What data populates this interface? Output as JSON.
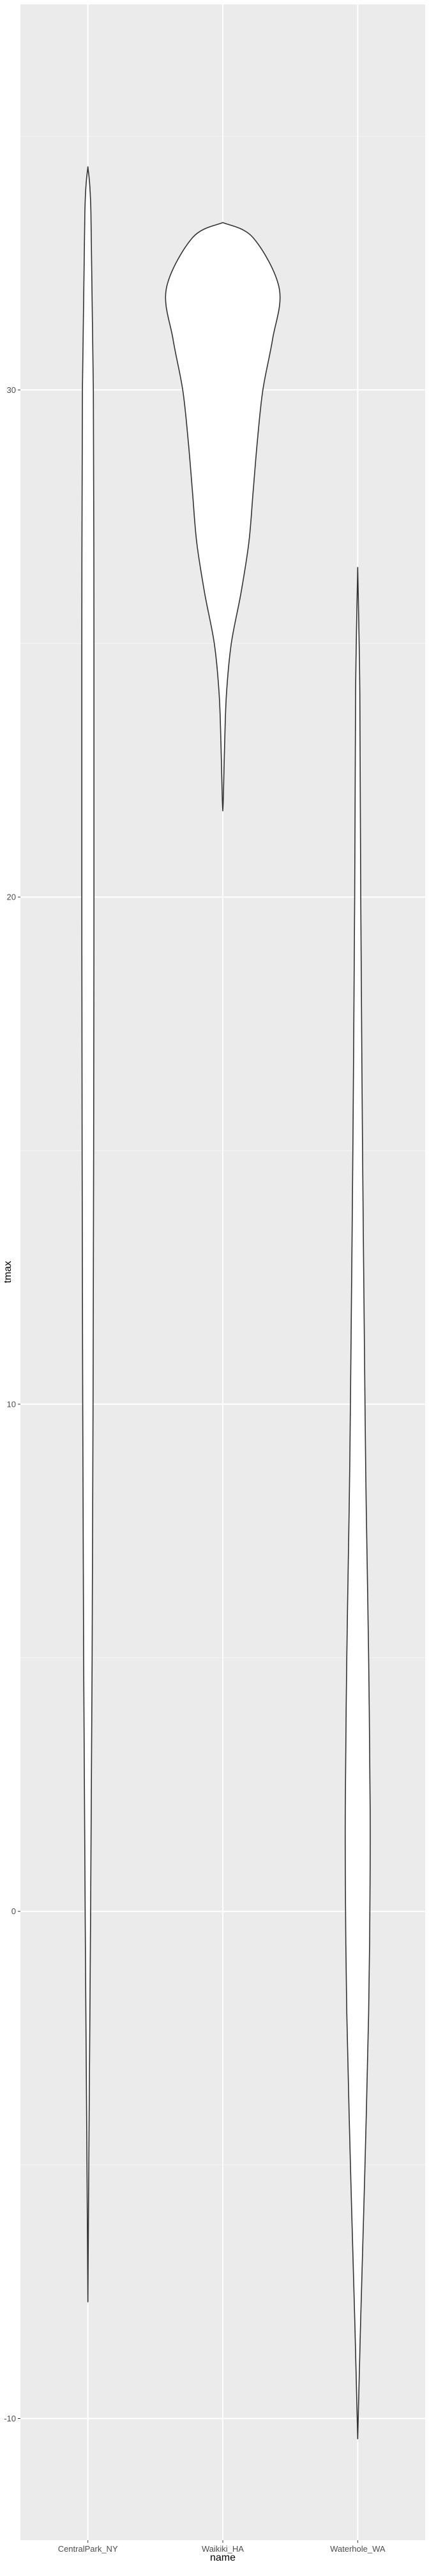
{
  "chart_data": {
    "type": "violin",
    "title": "",
    "xlabel": "name",
    "ylabel": "tmax",
    "categories": [
      "CentralPark_NY",
      "Waikiki_HA",
      "Waterhole_WA"
    ],
    "ylim": [
      -12.4,
      37.6
    ],
    "yticks": [
      -10,
      0,
      10,
      20,
      30
    ],
    "ytick_labels": [
      "-10",
      "0",
      "10",
      "20",
      "30"
    ],
    "grid": true,
    "legend": "none",
    "colors": {
      "panel": "#ebebeb",
      "grid": "#ffffff",
      "violin_fill": "#ffffff",
      "violin_stroke": "#333333"
    },
    "series": [
      {
        "name": "CentralPark_NY",
        "y": [
          -7.7,
          -5,
          0,
          5,
          10,
          15,
          20,
          25,
          30,
          33.5,
          34.4
        ],
        "width": [
          0.0,
          0.015,
          0.045,
          0.07,
          0.085,
          0.095,
          0.1,
          0.1,
          0.09,
          0.05,
          0.0
        ]
      },
      {
        "name": "Waikiki_HA",
        "y": [
          21.7,
          22.0,
          23.0,
          24.0,
          25.0,
          26.0,
          27.0,
          28.0,
          29.0,
          30.0,
          31.0,
          32.0,
          33.0,
          33.3
        ],
        "width": [
          0.0,
          0.01,
          0.03,
          0.06,
          0.14,
          0.3,
          0.43,
          0.5,
          0.57,
          0.66,
          0.82,
          0.93,
          0.5,
          0.0
        ]
      },
      {
        "name": "Waterhole_WA",
        "y": [
          -10.4,
          -8,
          -5,
          -2,
          0,
          2,
          5,
          8,
          10,
          15,
          20,
          24.0,
          26.5
        ],
        "width": [
          0.0,
          0.05,
          0.12,
          0.18,
          0.2,
          0.205,
          0.18,
          0.14,
          0.12,
          0.08,
          0.05,
          0.035,
          0.0
        ]
      }
    ]
  }
}
